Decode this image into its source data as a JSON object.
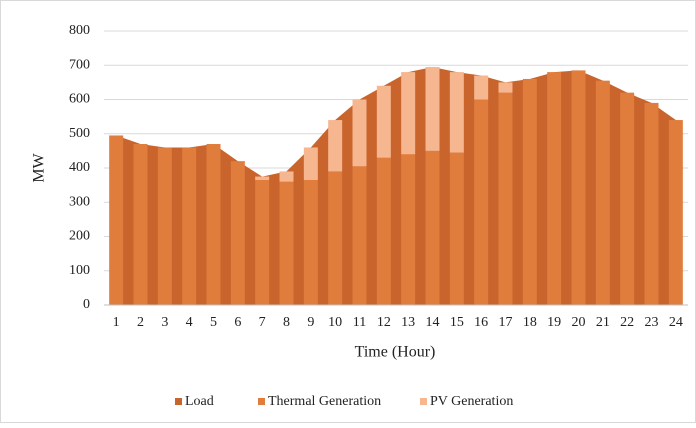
{
  "chart_data": {
    "type": "combo",
    "x_label": "Time (Hour)",
    "y_label": "MW",
    "categories": [
      "1",
      "2",
      "3",
      "4",
      "5",
      "6",
      "7",
      "8",
      "9",
      "10",
      "11",
      "12",
      "13",
      "14",
      "15",
      "16",
      "17",
      "18",
      "19",
      "20",
      "21",
      "22",
      "23",
      "24"
    ],
    "series": [
      {
        "name": "Load",
        "type": "area",
        "color": "#c8642c",
        "values": [
          495,
          470,
          460,
          460,
          470,
          420,
          375,
          390,
          460,
          540,
          600,
          640,
          680,
          695,
          680,
          670,
          650,
          660,
          680,
          685,
          655,
          620,
          590,
          540
        ]
      },
      {
        "name": "Thermal Generation",
        "type": "bar",
        "color": "#e07d3c",
        "values": [
          495,
          470,
          460,
          460,
          470,
          420,
          365,
          360,
          365,
          390,
          405,
          430,
          440,
          450,
          445,
          600,
          620,
          660,
          680,
          685,
          655,
          620,
          590,
          540
        ]
      },
      {
        "name": "PV Generation",
        "type": "bar",
        "color": "#f6b690",
        "values": [
          0,
          0,
          0,
          0,
          0,
          0,
          10,
          30,
          95,
          150,
          195,
          210,
          240,
          245,
          235,
          70,
          30,
          0,
          0,
          0,
          0,
          0,
          0,
          0
        ]
      }
    ],
    "ylim": [
      0,
      800
    ],
    "yticks": [
      0,
      100,
      200,
      300,
      400,
      500,
      600,
      700,
      800
    ],
    "grid": true,
    "legend": "bottom"
  }
}
